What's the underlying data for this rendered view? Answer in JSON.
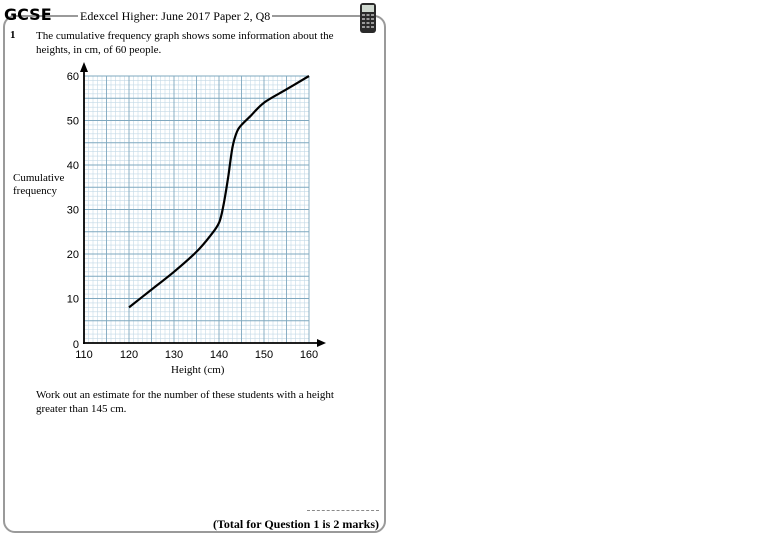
{
  "header": {
    "logo": "GCSE",
    "title": "Edexcel Higher: June 2017 Paper 2, Q8"
  },
  "question": {
    "number": "1",
    "intro": "The cumulative frequency graph shows some information about the heights, in cm, of 60 people.",
    "task": "Work out an estimate for the number of these students with a height greater than 145 cm.",
    "total": "(Total for Question 1 is 2 marks)"
  },
  "chart_data": {
    "type": "line",
    "xlabel": "Height (cm)",
    "ylabel": "Cumulative frequency",
    "x_ticks": [
      110,
      120,
      130,
      140,
      150,
      160
    ],
    "y_ticks": [
      0,
      10,
      20,
      30,
      40,
      50,
      60
    ],
    "xlim": [
      110,
      160
    ],
    "ylim": [
      0,
      60
    ],
    "grid": true,
    "series": [
      {
        "x": [
          120,
          125,
          130,
          135,
          138,
          140,
          141,
          142,
          143,
          144,
          145,
          147,
          150,
          155,
          160
        ],
        "y": [
          8,
          12,
          16,
          20.5,
          24,
          27,
          31,
          37,
          44,
          47.5,
          49,
          51,
          54,
          57,
          60
        ]
      }
    ]
  }
}
